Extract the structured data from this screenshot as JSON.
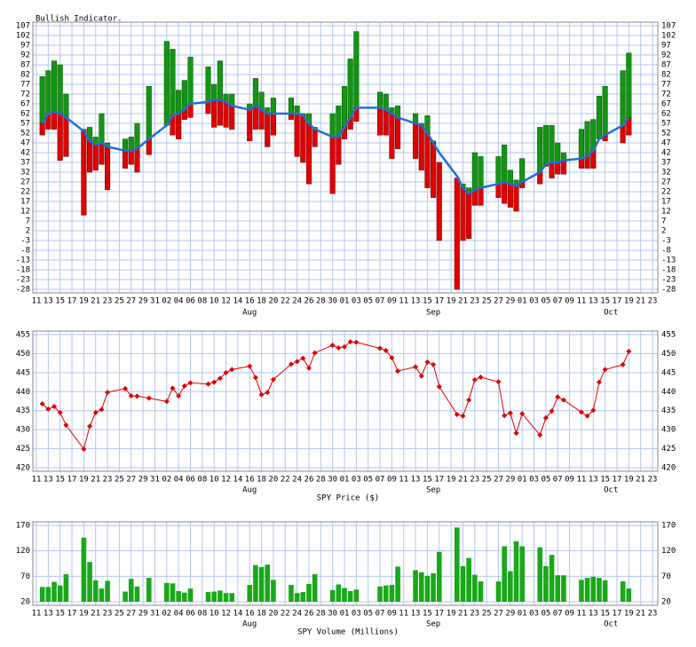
{
  "chart_data": [
    {
      "type": "indicator",
      "title": "Bullish Indicator.",
      "x": [
        "07-12",
        "07-13",
        "07-14",
        "07-15",
        "07-16",
        "07-19",
        "07-20",
        "07-21",
        "07-22",
        "07-23",
        "07-26",
        "07-27",
        "07-28",
        "07-30",
        "08-02",
        "08-03",
        "08-04",
        "08-05",
        "08-06",
        "08-09",
        "08-10",
        "08-11",
        "08-12",
        "08-13",
        "08-16",
        "08-17",
        "08-18",
        "08-19",
        "08-20",
        "08-23",
        "08-24",
        "08-25",
        "08-26",
        "08-27",
        "08-30",
        "08-31",
        "09-01",
        "09-02",
        "09-03",
        "09-07",
        "09-08",
        "09-09",
        "09-10",
        "09-13",
        "09-14",
        "09-15",
        "09-16",
        "09-17",
        "09-20",
        "09-21",
        "09-22",
        "09-23",
        "09-24",
        "09-27",
        "09-28",
        "09-29",
        "09-30",
        "10-01",
        "10-04",
        "10-05",
        "10-06",
        "10-07",
        "10-08",
        "10-11",
        "10-12",
        "10-13",
        "10-14",
        "10-15",
        "10-18",
        "10-19"
      ],
      "high": [
        81,
        84,
        89,
        87,
        72,
        54,
        55,
        50,
        62,
        47,
        49,
        50,
        57,
        76,
        99,
        95,
        74,
        79,
        91,
        86,
        77,
        89,
        72,
        72,
        67,
        80,
        73,
        65,
        70,
        70,
        66,
        62,
        62,
        55,
        62,
        66,
        76,
        90,
        104,
        73,
        72,
        65,
        66,
        62,
        57,
        61,
        48,
        37,
        29,
        26,
        24,
        42,
        40,
        40,
        46,
        33,
        28,
        39,
        55,
        56,
        56,
        47,
        42,
        54,
        58,
        59,
        71,
        76,
        84,
        93
      ],
      "low": [
        51,
        54,
        54,
        38,
        40,
        10,
        32,
        33,
        36,
        23,
        34,
        36,
        32,
        41,
        56,
        51,
        49,
        59,
        60,
        62,
        55,
        56,
        55,
        54,
        48,
        54,
        54,
        45,
        51,
        59,
        40,
        37,
        26,
        45,
        21,
        36,
        49,
        54,
        58,
        51,
        51,
        39,
        44,
        39,
        33,
        24,
        19,
        -3,
        -28,
        -3,
        -2,
        15,
        15,
        19,
        16,
        14,
        12,
        24,
        26,
        35,
        29,
        31,
        31,
        34,
        34,
        34,
        49,
        48,
        47,
        51
      ],
      "average": [
        57,
        62,
        63,
        62,
        60,
        53,
        48,
        46,
        47,
        45,
        43,
        43,
        44,
        49,
        56,
        61,
        62,
        64,
        67,
        68,
        69,
        69,
        68,
        66,
        64,
        66,
        64,
        62,
        62,
        62,
        62,
        61,
        57,
        54,
        50,
        50,
        55,
        60,
        65,
        65,
        64,
        62,
        60,
        57,
        56,
        52,
        47,
        42,
        30,
        24,
        21,
        23,
        24,
        26,
        27,
        26,
        25,
        27,
        32,
        36,
        37,
        37,
        38,
        39,
        40,
        43,
        49,
        51,
        56,
        60
      ],
      "up_color": "#129612",
      "down_color": "#e00000",
      "line_color": "#1f6fd6",
      "ylim": [
        -28,
        107
      ],
      "yticks": [
        -28,
        -23,
        -18,
        -13,
        -8,
        -3,
        2,
        7,
        12,
        17,
        22,
        27,
        32,
        37,
        42,
        47,
        52,
        57,
        62,
        67,
        72,
        77,
        82,
        87,
        92,
        97,
        102,
        107
      ],
      "day_labels": [
        "11",
        "13",
        "15",
        "17",
        "19",
        "21",
        "23",
        "25",
        "27",
        "29",
        "31",
        "02",
        "04",
        "06",
        "08",
        "10",
        "12",
        "14",
        "16",
        "18",
        "20",
        "22",
        "24",
        "26",
        "28",
        "30",
        "01",
        "03",
        "05",
        "07",
        "09",
        "11",
        "13",
        "15",
        "17",
        "19",
        "21",
        "23",
        "25",
        "27",
        "29",
        "01",
        "03",
        "05",
        "07",
        "09",
        "11",
        "13",
        "15",
        "17",
        "19",
        "21",
        "23"
      ],
      "month_labels": [
        "Aug",
        "Sep",
        "Oct"
      ],
      "grid": true
    },
    {
      "type": "line",
      "title": "SPY Price ($)",
      "x": [
        "07-12",
        "07-13",
        "07-14",
        "07-15",
        "07-16",
        "07-19",
        "07-20",
        "07-21",
        "07-22",
        "07-23",
        "07-26",
        "07-27",
        "07-28",
        "07-30",
        "08-02",
        "08-03",
        "08-04",
        "08-05",
        "08-06",
        "08-09",
        "08-10",
        "08-11",
        "08-12",
        "08-13",
        "08-16",
        "08-17",
        "08-18",
        "08-19",
        "08-20",
        "08-23",
        "08-24",
        "08-25",
        "08-26",
        "08-27",
        "08-30",
        "08-31",
        "09-01",
        "09-02",
        "09-03",
        "09-07",
        "09-08",
        "09-09",
        "09-10",
        "09-13",
        "09-14",
        "09-15",
        "09-16",
        "09-17",
        "09-20",
        "09-21",
        "09-22",
        "09-23",
        "09-24",
        "09-27",
        "09-28",
        "09-29",
        "09-30",
        "10-01",
        "10-04",
        "10-05",
        "10-06",
        "10-07",
        "10-08",
        "10-11",
        "10-12",
        "10-13",
        "10-14",
        "10-15",
        "10-18",
        "10-19"
      ],
      "values": [
        436.8,
        435.4,
        436.1,
        434.5,
        431.2,
        424.9,
        430.9,
        434.5,
        435.3,
        439.8,
        440.8,
        438.9,
        438.8,
        438.3,
        437.4,
        440.9,
        438.9,
        441.5,
        442.3,
        442.0,
        442.5,
        443.5,
        445.0,
        445.8,
        446.7,
        443.7,
        439.2,
        439.8,
        443.2,
        447.2,
        447.9,
        448.8,
        446.2,
        450.2,
        452.2,
        451.5,
        451.8,
        453.1,
        453.0,
        451.4,
        450.8,
        448.9,
        445.4,
        446.5,
        444.1,
        447.8,
        447.1,
        441.3,
        434.0,
        433.6,
        437.8,
        443.1,
        443.8,
        442.6,
        433.7,
        434.4,
        429.1,
        434.2,
        428.6,
        433.1,
        434.9,
        438.6,
        437.8,
        434.6,
        433.6,
        435.1,
        442.5,
        445.8,
        447.1,
        450.6
      ],
      "color": "#e00000",
      "ylim": [
        420,
        455
      ],
      "yticks": [
        420,
        425,
        430,
        435,
        440,
        445,
        450,
        455
      ],
      "day_labels": [
        "11",
        "13",
        "15",
        "17",
        "19",
        "21",
        "23",
        "25",
        "27",
        "29",
        "31",
        "02",
        "04",
        "06",
        "08",
        "10",
        "12",
        "14",
        "16",
        "18",
        "20",
        "22",
        "24",
        "26",
        "28",
        "30",
        "01",
        "03",
        "05",
        "07",
        "09",
        "11",
        "13",
        "15",
        "17",
        "19",
        "21",
        "23",
        "25",
        "27",
        "29",
        "01",
        "03",
        "05",
        "07",
        "09",
        "11",
        "13",
        "15",
        "17",
        "19",
        "21",
        "23"
      ],
      "month_labels": [
        "Aug",
        "Sep",
        "Oct"
      ],
      "grid": true
    },
    {
      "type": "bar",
      "title": "SPY Volume (Millions)",
      "x": [
        "07-12",
        "07-13",
        "07-14",
        "07-15",
        "07-16",
        "07-19",
        "07-20",
        "07-21",
        "07-22",
        "07-23",
        "07-26",
        "07-27",
        "07-28",
        "07-30",
        "08-02",
        "08-03",
        "08-04",
        "08-05",
        "08-06",
        "08-09",
        "08-10",
        "08-11",
        "08-12",
        "08-13",
        "08-16",
        "08-17",
        "08-18",
        "08-19",
        "08-20",
        "08-23",
        "08-24",
        "08-25",
        "08-26",
        "08-27",
        "08-30",
        "08-31",
        "09-01",
        "09-02",
        "09-03",
        "09-07",
        "09-08",
        "09-09",
        "09-10",
        "09-13",
        "09-14",
        "09-15",
        "09-16",
        "09-17",
        "09-20",
        "09-21",
        "09-22",
        "09-23",
        "09-24",
        "09-27",
        "09-28",
        "09-29",
        "09-30",
        "10-01",
        "10-04",
        "10-05",
        "10-06",
        "10-07",
        "10-08",
        "10-11",
        "10-12",
        "10-13",
        "10-14",
        "10-15",
        "10-18",
        "10-19"
      ],
      "values": [
        49,
        49,
        59,
        52,
        74,
        146,
        98,
        62,
        46,
        61,
        40,
        65,
        50,
        67,
        57,
        56,
        41,
        38,
        46,
        39,
        40,
        42,
        37,
        37,
        53,
        92,
        88,
        93,
        63,
        53,
        37,
        39,
        55,
        74,
        43,
        54,
        47,
        41,
        44,
        50,
        52,
        53,
        89,
        82,
        78,
        71,
        76,
        118,
        166,
        90,
        106,
        73,
        60,
        60,
        129,
        80,
        139,
        129,
        127,
        90,
        112,
        72,
        72,
        63,
        67,
        69,
        67,
        62,
        60,
        46
      ],
      "color": "#18a818",
      "ylim": [
        20,
        170
      ],
      "yticks": [
        20,
        70,
        120,
        170
      ],
      "day_labels": [
        "11",
        "13",
        "15",
        "17",
        "19",
        "21",
        "23",
        "25",
        "27",
        "29",
        "31",
        "02",
        "04",
        "06",
        "08",
        "10",
        "12",
        "14",
        "16",
        "18",
        "20",
        "22",
        "24",
        "26",
        "28",
        "30",
        "01",
        "03",
        "05",
        "07",
        "09",
        "11",
        "13",
        "15",
        "17",
        "19",
        "21",
        "23",
        "25",
        "27",
        "29",
        "01",
        "03",
        "05",
        "07",
        "09",
        "11",
        "13",
        "15",
        "17",
        "19",
        "21",
        "23"
      ],
      "month_labels": [
        "Aug",
        "Sep",
        "Oct"
      ],
      "grid": true
    }
  ]
}
